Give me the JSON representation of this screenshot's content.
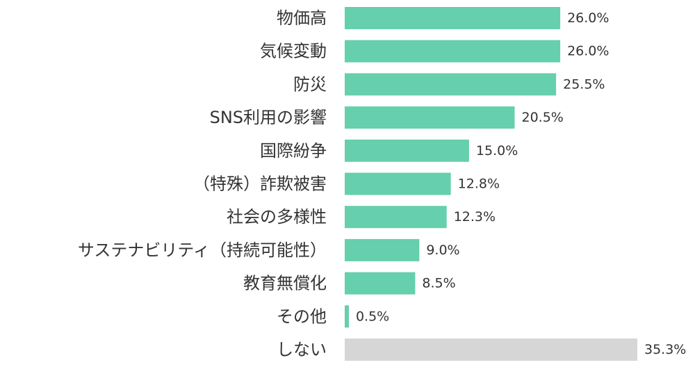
{
  "chart_data": {
    "type": "bar",
    "orientation": "horizontal",
    "categories": [
      "物価高",
      "気候変動",
      "防災",
      "SNS利用の影響",
      "国際紛争",
      "（特殊）詐欺被害",
      "社会の多様性",
      "サステナビリティ（持続可能性）",
      "教育無償化",
      "その他",
      "しない"
    ],
    "values": [
      26.0,
      26.0,
      25.5,
      20.5,
      15.0,
      12.8,
      12.3,
      9.0,
      8.5,
      0.5,
      35.3
    ],
    "value_labels": [
      "26.0%",
      "26.0%",
      "25.5%",
      "20.5%",
      "15.0%",
      "12.8%",
      "12.3%",
      "9.0%",
      "8.5%",
      "0.5%",
      "35.3%"
    ],
    "unit": "%",
    "xlim": [
      0,
      35.3
    ],
    "grid": false,
    "legend": "none",
    "colors": {
      "default_bar": "#66cfad",
      "none_bar": "#d6d6d6",
      "text": "#333333"
    },
    "bar_color_keys": [
      "default_bar",
      "default_bar",
      "default_bar",
      "default_bar",
      "default_bar",
      "default_bar",
      "default_bar",
      "default_bar",
      "default_bar",
      "default_bar",
      "none_bar"
    ]
  }
}
